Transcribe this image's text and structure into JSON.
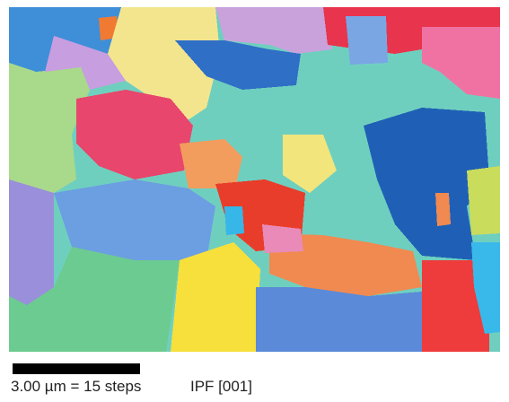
{
  "caption": {
    "scale": "3.00 µm = 15 steps",
    "view": "IPF [001]"
  }
}
